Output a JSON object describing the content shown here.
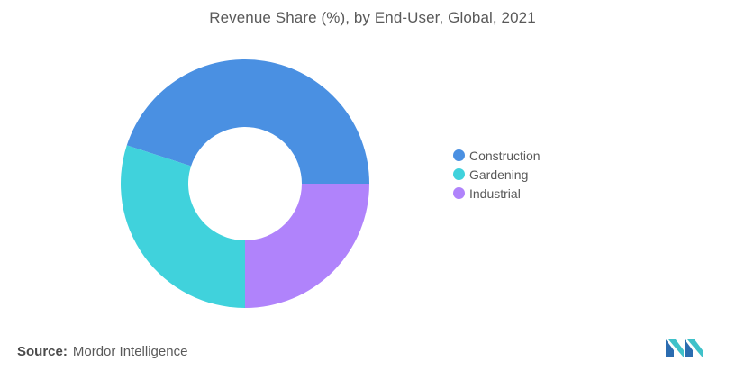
{
  "title": "Revenue Share (%), by End-User, Global, 2021",
  "source": {
    "prefix": "Source:",
    "text": "Mordor Intelligence"
  },
  "logo": {
    "icon": "mordor-intelligence-logo-icon",
    "color": "#3fc1c9"
  },
  "chart_data": {
    "type": "pie",
    "variant": "donut",
    "title": "Revenue Share (%), by End-User, Global, 2021",
    "categories": [
      "Construction",
      "Gardening",
      "Industrial"
    ],
    "values": [
      45,
      30,
      25
    ],
    "colors": [
      "#4a90e2",
      "#40d2dc",
      "#b083fb"
    ],
    "legend": "right"
  }
}
